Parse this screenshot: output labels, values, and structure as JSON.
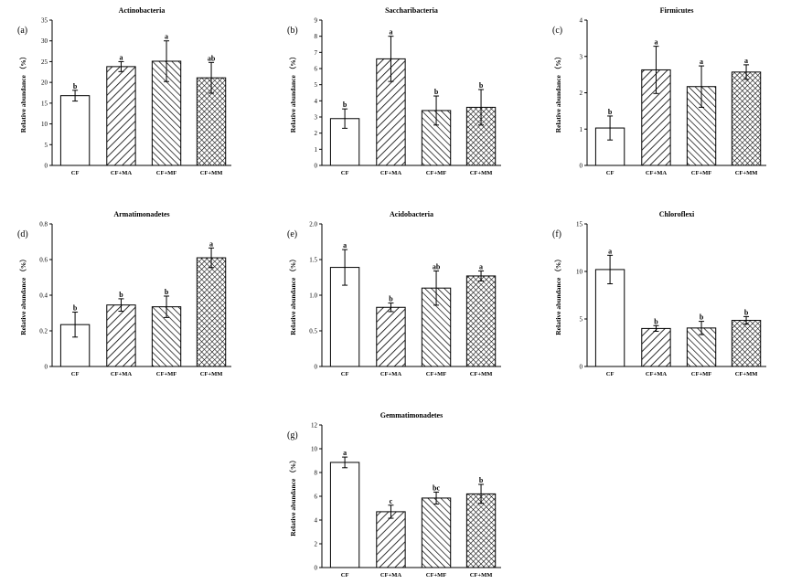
{
  "ylabel": "Relative abundance （%）",
  "colors": {
    "bar_stroke": "#000000",
    "bar_fill": "#ffffff"
  },
  "patterns": [
    "none",
    "diagonal-up",
    "diagonal-down",
    "crosshatch"
  ],
  "chart_data": [
    {
      "type": "bar",
      "label": "(a)",
      "title": "Actinobacteria",
      "categories": [
        "CF",
        "CF+MA",
        "CF+MF",
        "CF+MM"
      ],
      "values": [
        16.8,
        23.8,
        25.1,
        21.1
      ],
      "errors": [
        1.3,
        1.2,
        4.9,
        3.7
      ],
      "significance": [
        "b",
        "a",
        "a",
        "ab"
      ],
      "ylim": [
        0,
        35
      ],
      "yticks": [
        0,
        5,
        10,
        15,
        20,
        25,
        30,
        35
      ]
    },
    {
      "type": "bar",
      "label": "(b)",
      "title": "Saccharibacteria",
      "categories": [
        "CF",
        "CF+MA",
        "CF+MF",
        "CF+MM"
      ],
      "values": [
        2.9,
        6.6,
        3.4,
        3.6
      ],
      "errors": [
        0.6,
        1.4,
        0.9,
        1.1
      ],
      "significance": [
        "b",
        "a",
        "b",
        "b"
      ],
      "ylim": [
        0,
        9
      ],
      "yticks": [
        0,
        1,
        2,
        3,
        4,
        5,
        6,
        7,
        8,
        9
      ]
    },
    {
      "type": "bar",
      "label": "(c)",
      "title": "Firmicutes",
      "categories": [
        "CF",
        "CF+MA",
        "CF+MF",
        "CF+MM"
      ],
      "values": [
        1.03,
        2.63,
        2.17,
        2.57
      ],
      "errors": [
        0.33,
        0.65,
        0.57,
        0.2
      ],
      "significance": [
        "b",
        "a",
        "a",
        "a"
      ],
      "ylim": [
        0,
        4
      ],
      "yticks": [
        0,
        1,
        2,
        3,
        4
      ]
    },
    {
      "type": "bar",
      "label": "(d)",
      "title": "Armatimonadetes",
      "categories": [
        "CF",
        "CF+MA",
        "CF+MF",
        "CF+MM"
      ],
      "values": [
        0.235,
        0.345,
        0.335,
        0.61
      ],
      "errors": [
        0.07,
        0.035,
        0.06,
        0.055
      ],
      "significance": [
        "b",
        "b",
        "b",
        "a"
      ],
      "ylim": [
        0,
        0.8
      ],
      "yticks": [
        "0",
        "0.2",
        "0.4",
        "0.6",
        "0.8"
      ]
    },
    {
      "type": "bar",
      "label": "(e)",
      "title": "Acidobacteria",
      "categories": [
        "CF",
        "CF+MA",
        "CF+MF",
        "CF+MM"
      ],
      "values": [
        1.39,
        0.83,
        1.1,
        1.27
      ],
      "errors": [
        0.25,
        0.06,
        0.24,
        0.07
      ],
      "significance": [
        "a",
        "b",
        "ab",
        "a"
      ],
      "ylim": [
        0,
        2.0
      ],
      "yticks": [
        "0",
        "0.5",
        "1.0",
        "1.5",
        "2.0"
      ]
    },
    {
      "type": "bar",
      "label": "(f)",
      "title": "Chloroflexi",
      "categories": [
        "CF",
        "CF+MA",
        "CF+MF",
        "CF+MM"
      ],
      "values": [
        10.2,
        4.0,
        4.05,
        4.85
      ],
      "errors": [
        1.5,
        0.3,
        0.7,
        0.4
      ],
      "significance": [
        "a",
        "b",
        "b",
        "b"
      ],
      "ylim": [
        0,
        15
      ],
      "yticks": [
        0,
        5,
        10,
        15
      ]
    },
    {
      "type": "bar",
      "label": "(g)",
      "title": "Gemmatimonadetes",
      "categories": [
        "CF",
        "CF+MA",
        "CF+MF",
        "CF+MM"
      ],
      "values": [
        8.85,
        4.7,
        5.85,
        6.2
      ],
      "errors": [
        0.45,
        0.55,
        0.5,
        0.8
      ],
      "significance": [
        "a",
        "c",
        "bc",
        "b"
      ],
      "ylim": [
        0,
        12
      ],
      "yticks": [
        0,
        2,
        4,
        6,
        8,
        10,
        12
      ]
    }
  ]
}
